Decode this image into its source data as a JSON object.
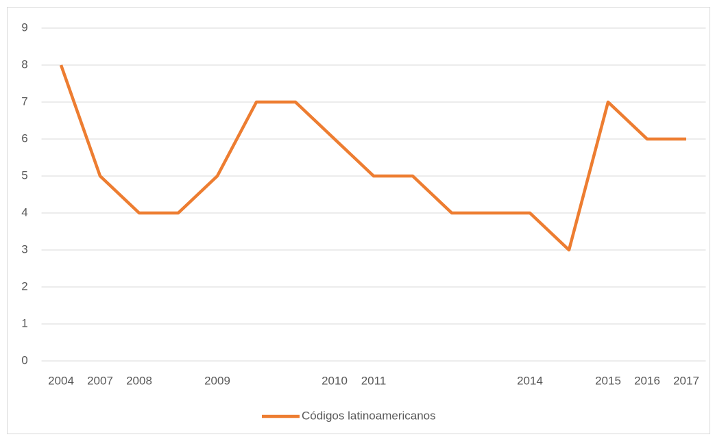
{
  "chart_data": {
    "type": "line",
    "categories": [
      "2004",
      "2007",
      "2008",
      null,
      "2009",
      null,
      null,
      "2010",
      "2011",
      null,
      null,
      null,
      "2014",
      null,
      "2015",
      "2016",
      "2017"
    ],
    "series": [
      {
        "name": "Códigos latinoamericanos",
        "color": "#ed7d31",
        "values": [
          8,
          5,
          4,
          4,
          5,
          7,
          7,
          6,
          5,
          5,
          4,
          4,
          4,
          3,
          7,
          6,
          6
        ]
      }
    ],
    "ylim": [
      0,
      9
    ],
    "yticks": [
      0,
      1,
      2,
      3,
      4,
      5,
      6,
      7,
      8,
      9
    ],
    "grid": true,
    "legend": "bottom"
  }
}
